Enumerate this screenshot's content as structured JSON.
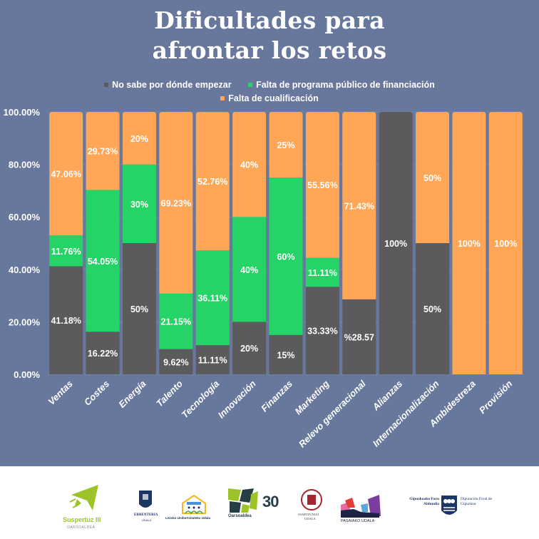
{
  "chart_data": {
    "type": "bar",
    "stacked": true,
    "title": "Dificultades para afrontar los retos",
    "title_lines": [
      "Dificultades para",
      "afrontar los retos"
    ],
    "xlabel": "",
    "ylabel": "",
    "ylim": [
      0,
      100
    ],
    "yticks": [
      0,
      20,
      40,
      60,
      80,
      100
    ],
    "ytick_labels": [
      "0.00%",
      "20.00%",
      "40.00%",
      "60.00%",
      "80.00%",
      "100.00%"
    ],
    "grid": true,
    "legend_position": "top-center",
    "categories": [
      "Ventas",
      "Costes",
      "Energía",
      "Talento",
      "Tecnología",
      "Innovación",
      "Finanzas",
      "Marketing",
      "Relevo generacional",
      "Alianzas",
      "Internacionalización",
      "Ambidestreza",
      "Provisión"
    ],
    "series": [
      {
        "name": "No sabe por dónde empezar",
        "color": "#5b5a5c",
        "values": [
          41.18,
          16.22,
          50,
          9.62,
          11.11,
          20,
          15,
          33.33,
          28.57,
          100,
          50,
          0,
          0
        ],
        "labels": [
          "41.18%",
          "16.22%",
          "50%",
          "9.62%",
          "11.11%",
          "20%",
          "15%",
          "33.33%",
          "%28.57",
          "100%",
          "50%",
          "",
          ""
        ]
      },
      {
        "name": "Falta de programa público de financiación",
        "color": "#25d366",
        "values": [
          11.76,
          54.05,
          30,
          21.15,
          36.11,
          40,
          60,
          11.11,
          0,
          0,
          0,
          0,
          0
        ],
        "labels": [
          "11.76%",
          "54.05%",
          "30%",
          "21.15%",
          "36.11%",
          "40%",
          "60%",
          "11.11%",
          "",
          "",
          "",
          "",
          ""
        ]
      },
      {
        "name": "Falta de cualificación",
        "color": "#ffa657",
        "values": [
          47.06,
          29.73,
          20,
          69.23,
          52.76,
          40,
          25,
          55.56,
          71.43,
          0,
          50,
          100,
          100
        ],
        "labels": [
          "47.06%",
          "29.73%",
          "20%",
          "69.23%",
          "52.76%",
          "40%",
          "25%",
          "55.56%",
          "71.43%",
          "",
          "50%",
          "100%",
          "100%"
        ]
      }
    ]
  },
  "colors": {
    "background": "#68779c",
    "gridline": "#7584a8",
    "text": "#ffffff"
  },
  "footer": {
    "logos": [
      {
        "name": "Suspertuz III",
        "subtitle": "OARSOALDEA"
      },
      {
        "name": "ERRENTERIA",
        "subtitle": "UDALA"
      },
      {
        "name": "Lezoko Unibertsitateko Udala"
      },
      {
        "name": "Oarsoaldea",
        "badge": "30"
      },
      {
        "name": "OIARTZUNGO",
        "subtitle": "UDALA"
      },
      {
        "name": "PASAIAKO UDALA"
      },
      {
        "name": "Gipuzkoako Foru Aldundia",
        "right_name": "Diputación Foral de Gipuzkoa"
      }
    ]
  }
}
